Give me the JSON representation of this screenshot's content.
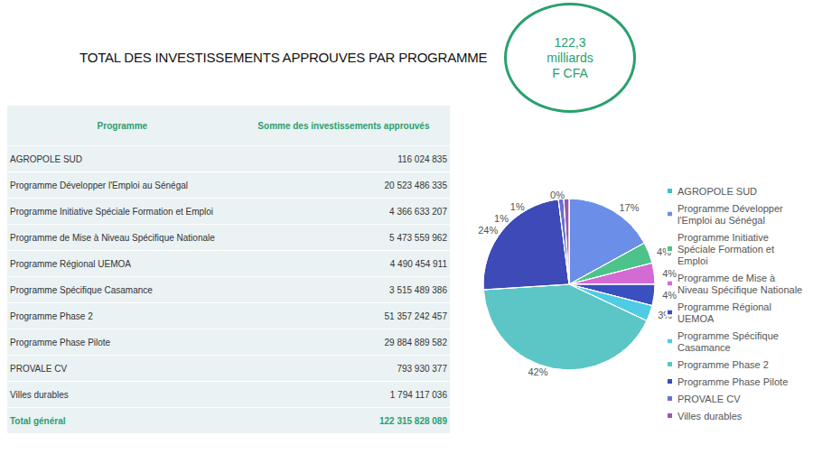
{
  "title": "TOTAL DES INVESTISSEMENTS APPROUVES PAR PROGRAMME",
  "badge": [
    "122,3",
    "milliards",
    "F CFA"
  ],
  "table": {
    "header": [
      "Programme",
      "Somme des investissements approuvés"
    ],
    "rows": [
      [
        "AGROPOLE SUD",
        "116 024 835"
      ],
      [
        "Programme Développer l'Emploi au Sénégal",
        "20 523 486 335"
      ],
      [
        "Programme Initiative Spéciale Formation et Emploi",
        "4 366 633 207"
      ],
      [
        "Programme de Mise à Niveau Spécifique Nationale",
        "5 473 559 962"
      ],
      [
        "Programme Régional UEMOA",
        "4 490 454 911"
      ],
      [
        "Programme Spécifique Casamance",
        "3 515 489 386"
      ],
      [
        "Programme Phase 2",
        "51 357 242 457"
      ],
      [
        "Programme Phase Pilote",
        "29 884 889 582"
      ],
      [
        "PROVALE CV",
        "793 930 377"
      ],
      [
        "Villes durables",
        "1 794 117 036"
      ]
    ],
    "total": [
      "Total général",
      "122 315 828 089"
    ]
  },
  "chart_data": {
    "type": "pie",
    "categories": [
      "AGROPOLE SUD",
      "Programme Développer l'Emploi au Sénégal",
      "Programme Initiative Spéciale Formation et Emploi",
      "Programme de Mise à Niveau Spécifique Nationale",
      "Programme Régional UEMOA",
      "Programme Spécifique Casamance",
      "Programme Phase 2",
      "Programme Phase Pilote",
      "PROVALE CV",
      "Villes durables"
    ],
    "values": [
      0,
      17,
      4,
      4,
      4,
      3,
      42,
      24,
      1,
      1
    ],
    "value_labels": [
      "0%",
      "17%",
      "4%",
      "4%",
      "4%",
      "3%",
      "42%",
      "24%",
      "1%",
      "1%"
    ],
    "colors": [
      "#3dbfd9",
      "#6b8ee8",
      "#4cc38a",
      "#d46ad4",
      "#3a4fc0",
      "#4fcbe6",
      "#5cc6c6",
      "#3d4ab8",
      "#6a6fd0",
      "#9a5aa8"
    ],
    "data_labels": true,
    "legend": "right"
  }
}
